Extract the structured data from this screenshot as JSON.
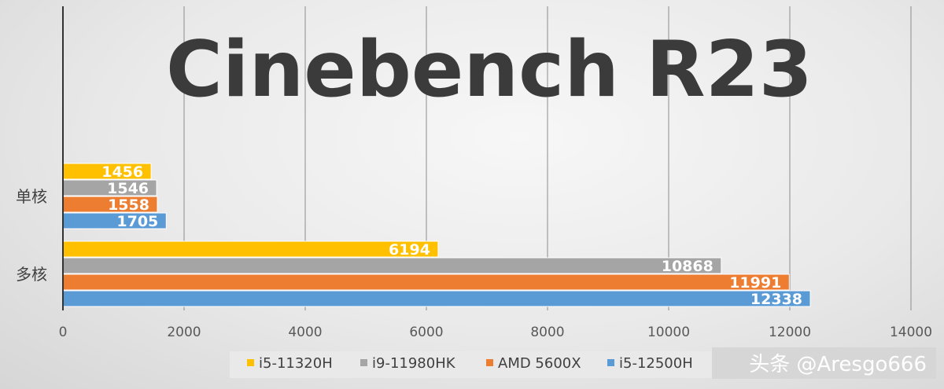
{
  "chart_data": {
    "type": "bar",
    "orientation": "horizontal",
    "title": "Cinebench R23",
    "categories": [
      "单核",
      "多核"
    ],
    "series": [
      {
        "name": "i5-11320H",
        "color": "#ffc000",
        "values": [
          1456,
          6194
        ]
      },
      {
        "name": "i9-11980HK",
        "color": "#a5a5a5",
        "values": [
          1546,
          10868
        ]
      },
      {
        "name": "AMD 5600X",
        "color": "#ed7d31",
        "values": [
          1558,
          11991
        ]
      },
      {
        "name": "i5-12500H",
        "color": "#5b9bd5",
        "values": [
          1705,
          12338
        ]
      }
    ],
    "xlim": [
      0,
      14000
    ],
    "xticks": [
      0,
      2000,
      4000,
      6000,
      8000,
      10000,
      12000,
      14000
    ],
    "grid": true,
    "legend_position": "bottom",
    "data_labels": true
  },
  "watermark": "头条 @Aresgo666"
}
